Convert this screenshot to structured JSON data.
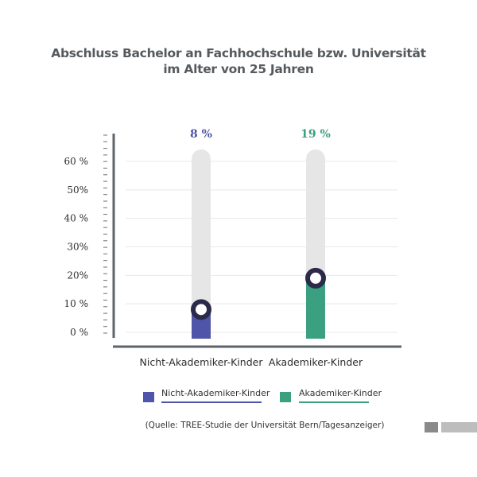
{
  "title_line1": "Abschluss Bachelor an Fachhochschule bzw. Universität",
  "title_line2": "im Alter von 25 Jahren",
  "source": "(Quelle: TREE-Studie der Universität Bern/Tagesanzeiger)",
  "colors": {
    "nicht": "#4f55a8",
    "akad": "#3aa07f",
    "track": "#e6e6e6",
    "axis": "#5f6468",
    "grid": "#e8e8e8"
  },
  "chart_data": {
    "type": "bar",
    "title": "Abschluss Bachelor an Fachhochschule bzw. Universität im Alter von 25 Jahren",
    "categories": [
      "Nicht-Akademiker-Kinder",
      "Akademiker-Kinder"
    ],
    "values": [
      8,
      19
    ],
    "value_labels": [
      "8 %",
      "19 %"
    ],
    "y_ticks": [
      0,
      10,
      20,
      30,
      40,
      50,
      60
    ],
    "y_tick_labels": [
      "0 %",
      "10 %",
      "20%",
      "30%",
      "40 %",
      "50%",
      "60 %"
    ],
    "ylim": [
      0,
      60
    ],
    "legend": [
      "Nicht-Akademiker-Kinder",
      "Akademiker-Kinder"
    ],
    "legend_position": "bottom"
  }
}
